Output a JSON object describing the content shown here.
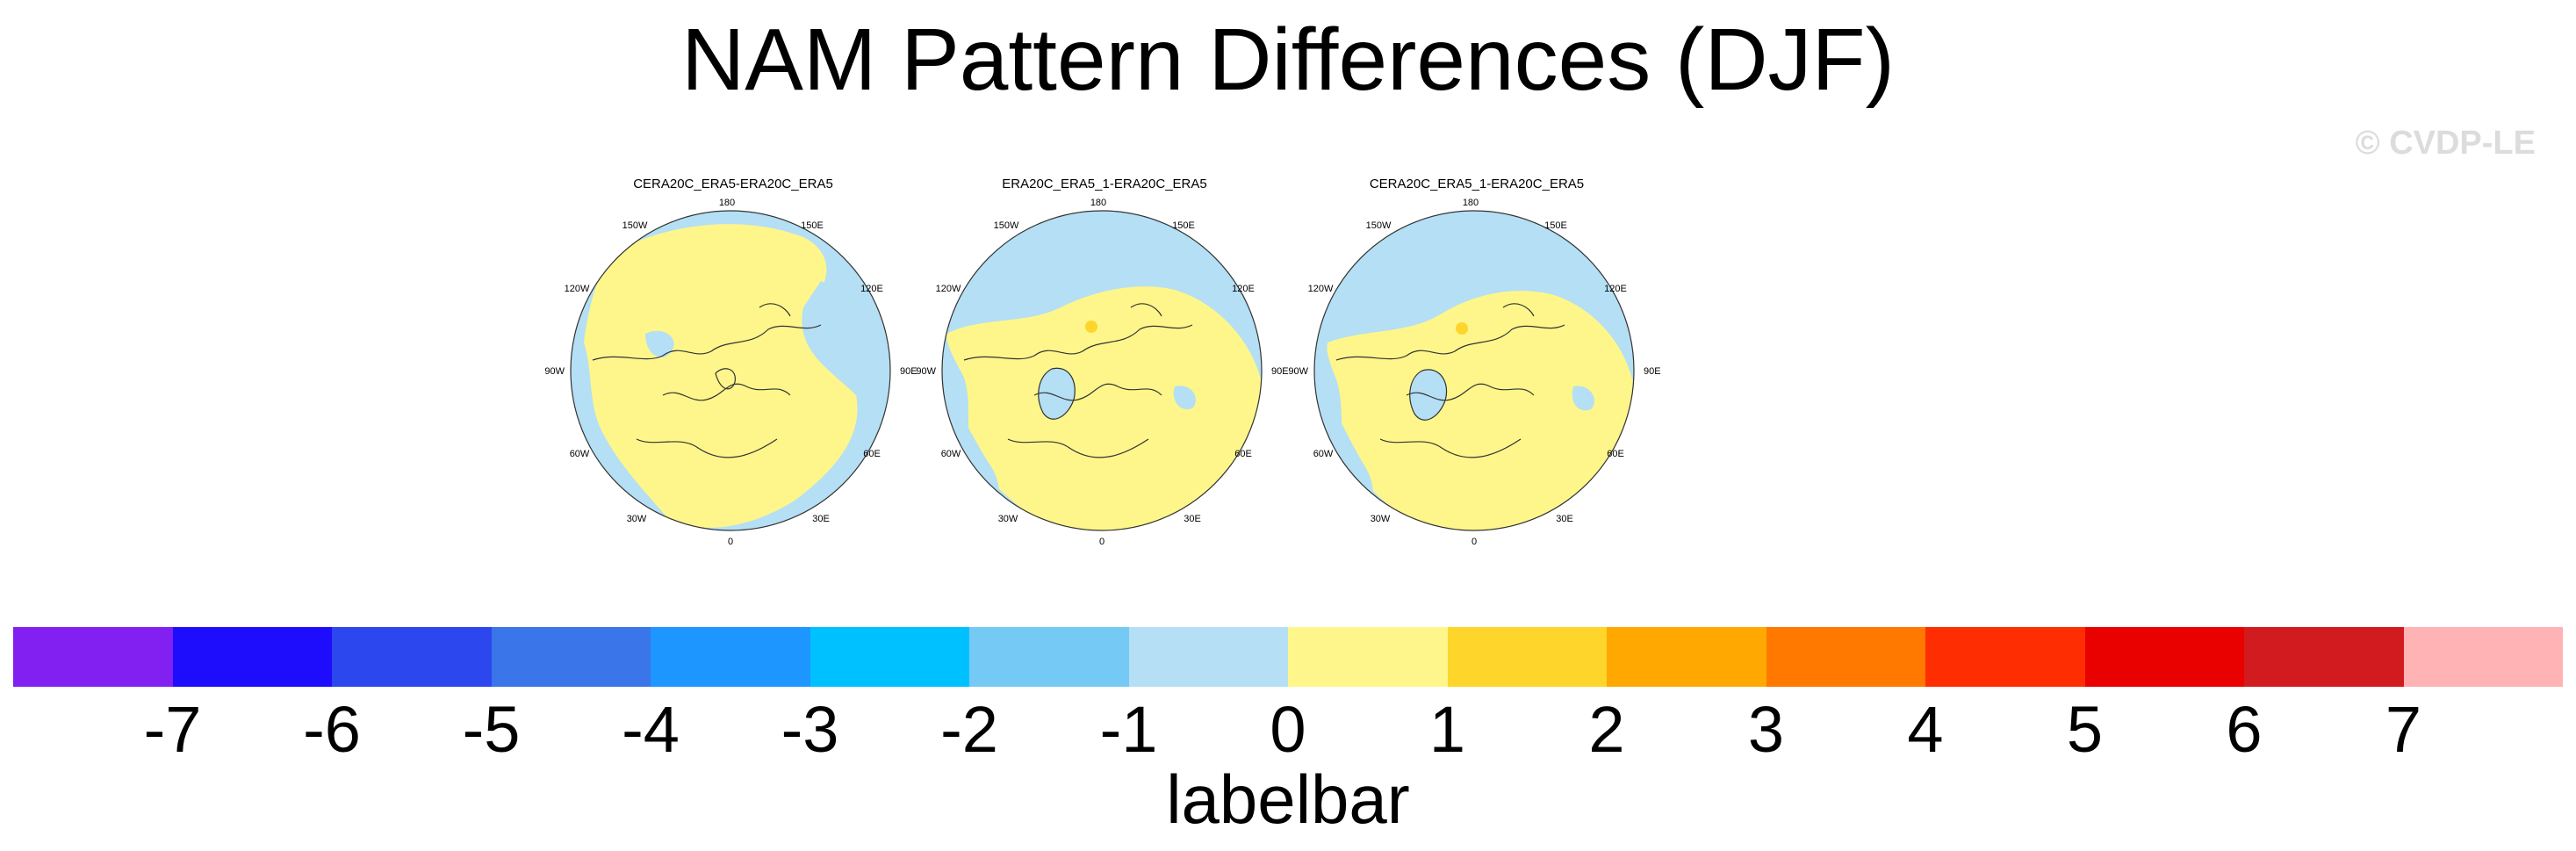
{
  "title": "NAM Pattern Differences (DJF)",
  "watermark": "© CVDP-LE",
  "panels": [
    {
      "title": "CERA20C_ERA5-ERA20C_ERA5"
    },
    {
      "title": "ERA20C_ERA5_1-ERA20C_ERA5"
    },
    {
      "title": "CERA20C_ERA5_1-ERA20C_ERA5"
    }
  ],
  "longitude_labels": [
    "180",
    "150E",
    "120E",
    "90E",
    "60E",
    "30E",
    "0",
    "30W",
    "60W",
    "90W",
    "120W",
    "150W"
  ],
  "colorbar": {
    "title": "labelbar",
    "ticks": [
      "-7",
      "-6",
      "-5",
      "-4",
      "-3",
      "-2",
      "-1",
      "0",
      "1",
      "2",
      "3",
      "4",
      "5",
      "6",
      "7"
    ],
    "colors": [
      "#8120f0",
      "#1e0dfc",
      "#2c47ee",
      "#3a76e9",
      "#1e96ff",
      "#00c1ff",
      "#75c9f5",
      "#b4dff4",
      "#fef68b",
      "#fdd52b",
      "#fea801",
      "#ff7800",
      "#fe2e02",
      "#e90100",
      "#d11b1f",
      "#ffb3b4"
    ]
  },
  "map_colors": {
    "negative": "#b4dff4",
    "positive": "#fef68b",
    "highlight": "#fdd52b"
  }
}
